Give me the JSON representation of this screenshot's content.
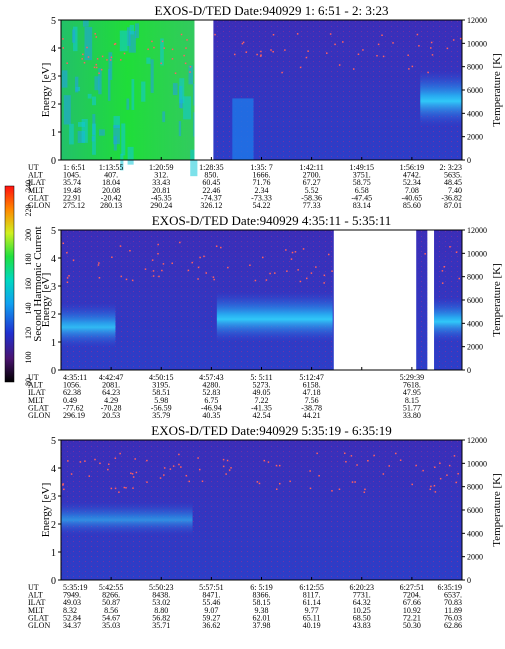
{
  "colorbar": {
    "label": "Second Harmonic Current",
    "ticks": [
      "80",
      "100",
      "120",
      "140",
      "160",
      "180",
      "200",
      "220",
      "240"
    ]
  },
  "chart_data": [
    {
      "type": "heatmap",
      "title": "EXOS-D/TED   Date:940929  1: 6:51 - 2: 3:23",
      "ylabel": "Energy [eV]",
      "y2label": "Temperature [K]",
      "ylim": [
        0,
        5
      ],
      "y2lim": [
        0,
        12000
      ],
      "yticks": [
        "0",
        "1",
        "2",
        "3",
        "4",
        "5"
      ],
      "y2ticks": [
        "0",
        "2000",
        "4000",
        "6000",
        "8000",
        "10000",
        "12000"
      ],
      "ephemeris_labels": [
        "UT",
        "ALT",
        "ILAT",
        "MLT",
        "GLAT",
        "GLON"
      ],
      "columns": [
        {
          "UT": "1: 6:51",
          "ALT": "1045.",
          "ILAT": "35.74",
          "MLT": "19.48",
          "GLAT": "22.91",
          "GLON": "275.12"
        },
        {
          "UT": "1:13:55",
          "ALT": "407.",
          "ILAT": "18.04",
          "MLT": "20.08",
          "GLAT": "-20.42",
          "GLON": "280.13"
        },
        {
          "UT": "1:20:59",
          "ALT": "312.",
          "ILAT": "33.43",
          "MLT": "20.81",
          "GLAT": "-45.35",
          "GLON": "290.24"
        },
        {
          "UT": "1:28:35",
          "ALT": "850.",
          "ILAT": "60.45",
          "MLT": "22.46",
          "GLAT": "-74.37",
          "GLON": "326.12"
        },
        {
          "UT": "1:35: 7",
          "ALT": "1666.",
          "ILAT": "71.76",
          "MLT": "2.34",
          "GLAT": "-73.33",
          "GLON": "54.22"
        },
        {
          "UT": "1:42:11",
          "ALT": "2700.",
          "ILAT": "67.27",
          "MLT": "5.52",
          "GLAT": "-58.36",
          "GLON": "77.33"
        },
        {
          "UT": "1:49:15",
          "ALT": "3751.",
          "ILAT": "58.75",
          "MLT": "6.58",
          "GLAT": "-47.45",
          "GLON": "83.14"
        },
        {
          "UT": "1:56:19",
          "ALT": "4742.",
          "ILAT": "52.34",
          "MLT": "7.08",
          "GLAT": "-40.65",
          "GLON": "85.60"
        },
        {
          "UT": "2: 3:23",
          "ALT": "5635.",
          "ILAT": "48.45",
          "MLT": "7.40",
          "GLAT": "-36.82",
          "GLON": "87.01"
        }
      ],
      "data_gaps_ut": [
        [
          "1:25:40",
          "1:28:20"
        ]
      ]
    },
    {
      "type": "heatmap",
      "title": "EXOS-D/TED   Date:940929  4:35:11 - 5:35:11",
      "ylabel": "Energy [eV]",
      "y2label": "Temperature [K]",
      "ylim": [
        0,
        5
      ],
      "y2lim": [
        0,
        12000
      ],
      "yticks": [
        "0",
        "1",
        "2",
        "3",
        "4",
        "5"
      ],
      "y2ticks": [
        "0",
        "2000",
        "4000",
        "6000",
        "8000",
        "10000",
        "12000"
      ],
      "ephemeris_labels": [
        "UT",
        "ALT",
        "ILAT",
        "MLT",
        "GLAT",
        "GLON"
      ],
      "columns": [
        {
          "UT": "4:35:11",
          "ALT": "1056.",
          "ILAT": "62.38",
          "MLT": "0.49",
          "GLAT": "-77.62",
          "GLON": "296.19"
        },
        {
          "UT": "4:42:47",
          "ALT": "2081.",
          "ILAT": "64.23",
          "MLT": "4.29",
          "GLAT": "-70.28",
          "GLON": "20.53"
        },
        {
          "UT": "4:50:15",
          "ALT": "3195.",
          "ILAT": "58.51",
          "MLT": "5.98",
          "GLAT": "-56.59",
          "GLON": "35.79"
        },
        {
          "UT": "4:57:43",
          "ALT": "4280.",
          "ILAT": "52.83",
          "MLT": "6.75",
          "GLAT": "-46.94",
          "GLON": "40.35"
        },
        {
          "UT": "5: 5:11",
          "ALT": "5273.",
          "ILAT": "49.05",
          "MLT": "7.22",
          "GLAT": "-41.35",
          "GLON": "42.54"
        },
        {
          "UT": "5:12:47",
          "ALT": "6158.",
          "ILAT": "47.18",
          "MLT": "7.56",
          "GLAT": "-38.78",
          "GLON": "44.21"
        },
        {
          "UT": "",
          "ALT": "",
          "ILAT": "",
          "MLT": "",
          "GLAT": "",
          "GLON": ""
        },
        {
          "UT": "5:29:39",
          "ALT": "7618.",
          "ILAT": "47.95",
          "MLT": "8.15",
          "GLAT": "51.77",
          "GLON": "33.80"
        },
        {
          "UT": "",
          "ALT": "",
          "ILAT": "",
          "MLT": "",
          "GLAT": "",
          "GLON": ""
        }
      ],
      "data_gaps_ut": [
        [
          "5:16:00",
          "5:28:20"
        ],
        [
          "5:30:00",
          "5:31:00"
        ]
      ]
    },
    {
      "type": "heatmap",
      "title": "EXOS-D/TED   Date:940929  5:35:19 - 6:35:19",
      "ylabel": "Energy [eV]",
      "y2label": "Temperature [K]",
      "ylim": [
        0,
        5
      ],
      "y2lim": [
        0,
        12000
      ],
      "yticks": [
        "0",
        "1",
        "2",
        "3",
        "4",
        "5"
      ],
      "y2ticks": [
        "0",
        "2000",
        "4000",
        "6000",
        "8000",
        "10000",
        "12000"
      ],
      "ephemeris_labels": [
        "UT",
        "ALT",
        "ILAT",
        "MLT",
        "GLAT",
        "GLON"
      ],
      "columns": [
        {
          "UT": "5:35:19",
          "ALT": "7949.",
          "ILAT": "49.03",
          "MLT": "8.32",
          "GLAT": "52.84",
          "GLON": "34.37"
        },
        {
          "UT": "5:42:55",
          "ALT": "8266.",
          "ILAT": "50.87",
          "MLT": "8.56",
          "GLAT": "54.67",
          "GLON": "35.03"
        },
        {
          "UT": "5:50:23",
          "ALT": "8438.",
          "ILAT": "53.02",
          "MLT": "8.80",
          "GLAT": "56.82",
          "GLON": "35.71"
        },
        {
          "UT": "5:57:51",
          "ALT": "8471.",
          "ILAT": "55.46",
          "MLT": "9.07",
          "GLAT": "59.27",
          "GLON": "36.62"
        },
        {
          "UT": "6: 5:19",
          "ALT": "8366.",
          "ILAT": "58.15",
          "MLT": "9.38",
          "GLAT": "62.01",
          "GLON": "37.98"
        },
        {
          "UT": "6:12:55",
          "ALT": "8117.",
          "ILAT": "61.14",
          "MLT": "9.77",
          "GLAT": "65.11",
          "GLON": "40.19"
        },
        {
          "UT": "6:20:23",
          "ALT": "7731.",
          "ILAT": "64.32",
          "MLT": "10.25",
          "GLAT": "68.50",
          "GLON": "43.83"
        },
        {
          "UT": "6:27:51",
          "ALT": "7204.",
          "ILAT": "67.66",
          "MLT": "10.92",
          "GLAT": "72.21",
          "GLON": "50.30"
        },
        {
          "UT": "6:35:19",
          "ALT": "6537.",
          "ILAT": "70.83",
          "MLT": "11.89",
          "GLAT": "76.03",
          "GLON": "62.86"
        }
      ],
      "data_gaps_ut": []
    }
  ]
}
